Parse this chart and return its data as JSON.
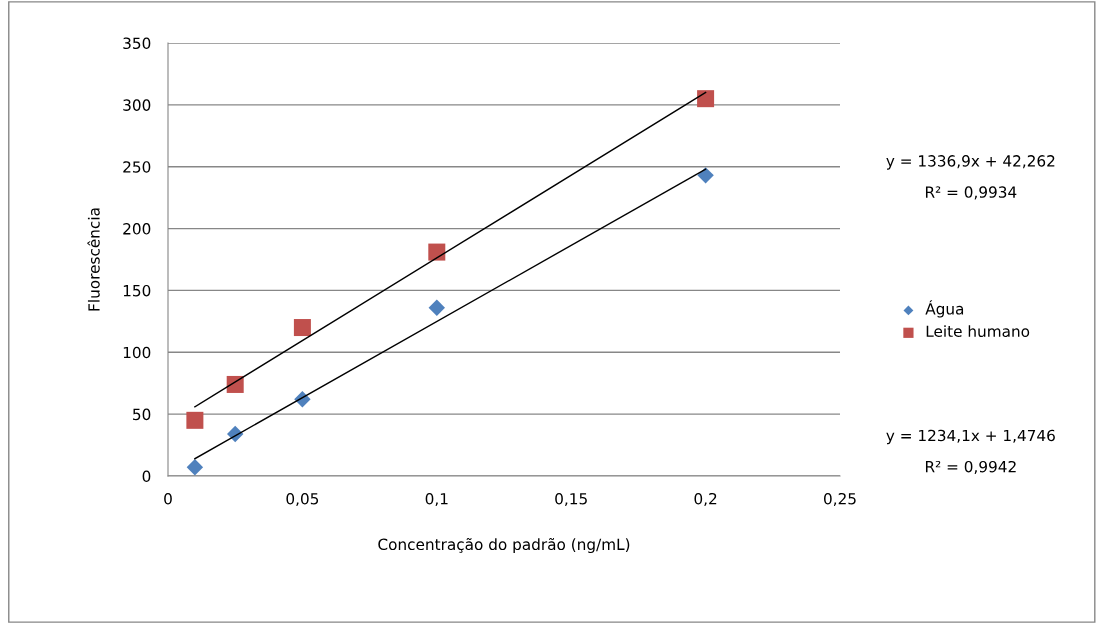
{
  "chart_data": {
    "type": "scatter",
    "xlabel": "Concentração do padrão (ng/mL)",
    "ylabel": "Fluorescência",
    "series": [
      {
        "name": "Água",
        "color": "#4f81bd",
        "marker": "diamond",
        "x": [
          0.01,
          0.025,
          0.05,
          0.1,
          0.2
        ],
        "values": [
          7,
          34,
          62,
          136,
          243
        ]
      },
      {
        "name": "Leite humano",
        "color": "#c0504d",
        "marker": "square",
        "x": [
          0.01,
          0.025,
          0.05,
          0.1,
          0.2
        ],
        "values": [
          45,
          74,
          120,
          181,
          305
        ]
      },
      {
        "type": "line",
        "color": "#000000",
        "marker": "none",
        "x": [
          0.01,
          0.2
        ],
        "values": [
          14,
          248
        ]
      },
      {
        "type": "line",
        "color": "#000000",
        "marker": "none",
        "x": [
          0.01,
          0.2
        ],
        "values": [
          56,
          310
        ]
      }
    ],
    "annotations": [
      "y = 1336,9x + 42,262",
      "R² = 0,9934",
      "y = 1234,1x + 1,4746",
      "R² = 0,9942"
    ],
    "xlim": [
      0,
      0.25
    ],
    "xticks": [
      0,
      {
        "value": 0.05,
        "label": "0,05"
      },
      {
        "value": 0.1,
        "label": "0,1"
      },
      {
        "value": 0.15,
        "label": "0,15"
      },
      {
        "value": 0.2,
        "label": "0,2"
      },
      {
        "value": 0.25,
        "label": "0,25"
      }
    ],
    "ylim": [
      0,
      350
    ],
    "yticks": [
      0,
      50,
      100,
      150,
      200,
      250,
      300,
      350
    ],
    "grid": "y",
    "legend": "right"
  }
}
